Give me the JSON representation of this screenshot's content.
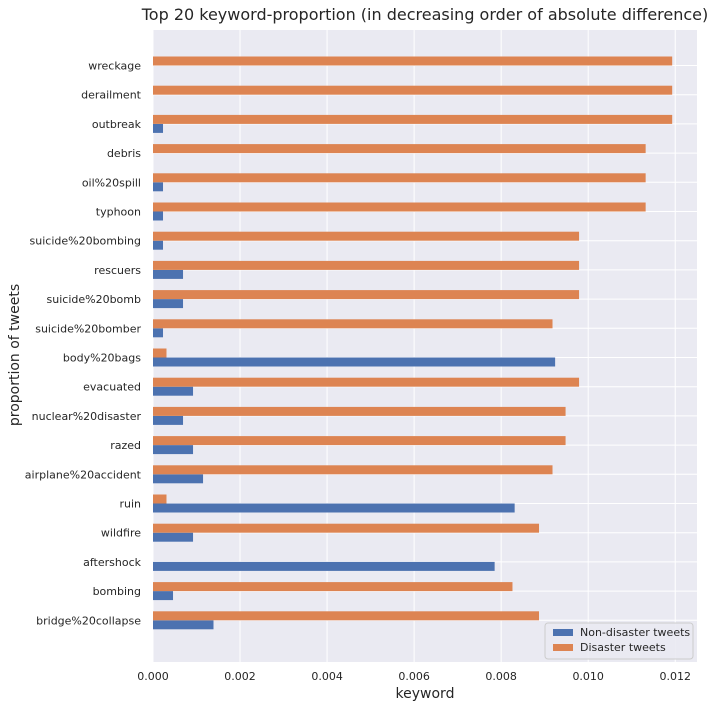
{
  "chart_data": {
    "type": "bar",
    "orientation": "horizontal",
    "title": "Top 20 keyword-proportion (in decreasing order of absolute difference)",
    "xlabel": "keyword",
    "ylabel": "proportion of tweets",
    "xlim": [
      0,
      0.0125
    ],
    "xticks": [
      "0.000",
      "0.002",
      "0.004",
      "0.006",
      "0.008",
      "0.010",
      "0.012"
    ],
    "grid": true,
    "legend_position": "bottom-right",
    "categories": [
      "wreckage",
      "derailment",
      "outbreak",
      "debris",
      "oil%20spill",
      "typhoon",
      "suicide%20bombing",
      "rescuers",
      "suicide%20bomb",
      "suicide%20bomber",
      "body%20bags",
      "evacuated",
      "nuclear%20disaster",
      "razed",
      "airplane%20accident",
      "ruin",
      "wildfire",
      "aftershock",
      "bombing",
      "bridge%20collapse"
    ],
    "series": [
      {
        "name": "Non-disaster tweets",
        "color": "#4c72b0",
        "values": [
          0,
          0,
          0.00023,
          0,
          0.00023,
          0.00023,
          0.00023,
          0.00069,
          0.00069,
          0.00023,
          0.00924,
          0.00092,
          0.00069,
          0.00092,
          0.00115,
          0.00831,
          0.00092,
          0.00785,
          0.00046,
          0.00139
        ]
      },
      {
        "name": "Disaster tweets",
        "color": "#dd8452",
        "values": [
          0.01193,
          0.01193,
          0.01193,
          0.01132,
          0.01132,
          0.01132,
          0.00979,
          0.00979,
          0.00979,
          0.00918,
          0.00031,
          0.00979,
          0.00948,
          0.00948,
          0.00918,
          0.00031,
          0.00887,
          0,
          0.00826,
          0.00887
        ]
      }
    ]
  },
  "colors": {
    "plot_background": "#eaeaf2",
    "gridline": "#ffffff"
  }
}
